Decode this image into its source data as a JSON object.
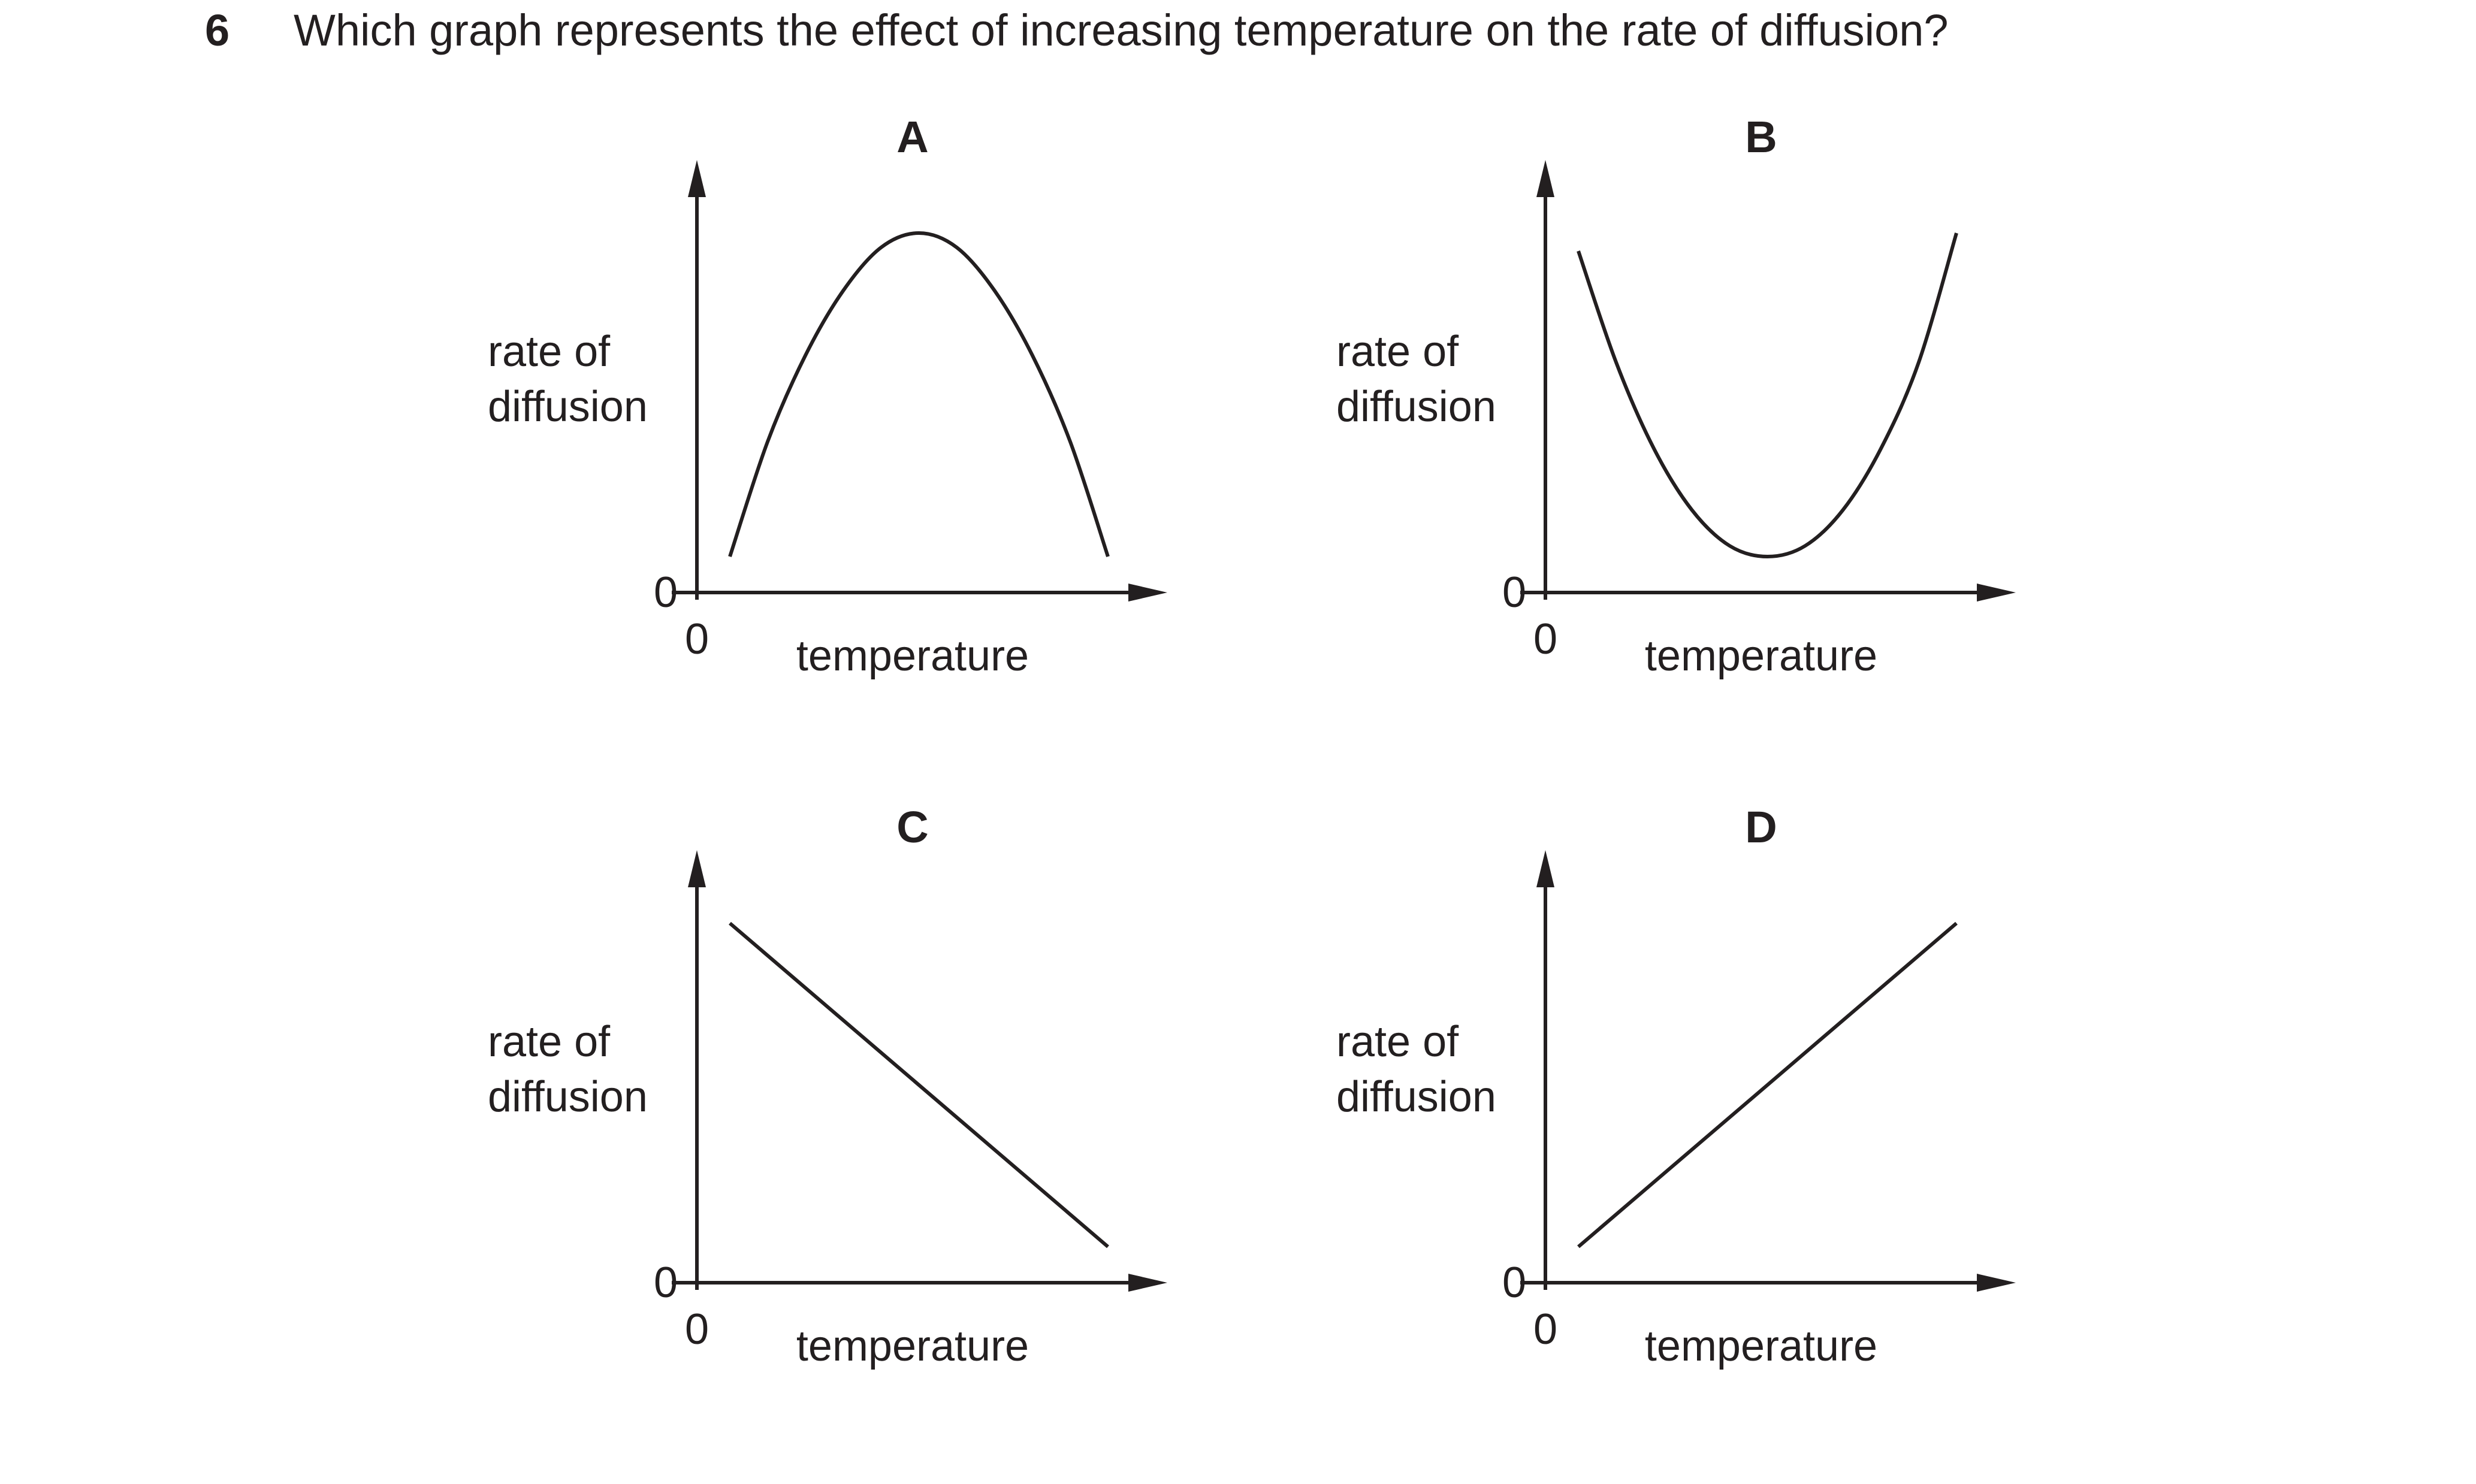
{
  "question": {
    "number": "6",
    "text": "Which graph represents the effect of increasing temperature on the rate of diffusion?"
  },
  "chart_data": [
    {
      "type": "line",
      "option": "A",
      "title": "A",
      "xlabel": "temperature",
      "ylabel": "rate of diffusion",
      "x_origin_label": "0",
      "y_origin_label": "0",
      "shape": "inverted parabola",
      "x": [
        0.0,
        0.1,
        0.2,
        0.3,
        0.4,
        0.5,
        0.6,
        0.7,
        0.8,
        0.9,
        1.0
      ],
      "y": [
        0.1,
        0.42,
        0.66,
        0.84,
        0.96,
        1.0,
        0.96,
        0.84,
        0.66,
        0.42,
        0.1
      ]
    },
    {
      "type": "line",
      "option": "B",
      "title": "B",
      "xlabel": "temperature",
      "ylabel": "rate of diffusion",
      "x_origin_label": "0",
      "y_origin_label": "0",
      "shape": "parabola",
      "x": [
        0.0,
        0.1,
        0.2,
        0.3,
        0.4,
        0.5,
        0.6,
        0.7,
        0.8,
        0.9,
        1.0
      ],
      "y": [
        0.95,
        0.64,
        0.4,
        0.23,
        0.13,
        0.1,
        0.13,
        0.23,
        0.4,
        0.64,
        1.0
      ]
    },
    {
      "type": "line",
      "option": "C",
      "title": "C",
      "xlabel": "temperature",
      "ylabel": "rate of diffusion",
      "x_origin_label": "0",
      "y_origin_label": "0",
      "shape": "straight line, negative gradient",
      "x": [
        0.0,
        1.0
      ],
      "y": [
        1.0,
        0.1
      ]
    },
    {
      "type": "line",
      "option": "D",
      "title": "D",
      "xlabel": "temperature",
      "ylabel": "rate of diffusion",
      "x_origin_label": "0",
      "y_origin_label": "0",
      "shape": "straight line, positive gradient",
      "x": [
        0.0,
        1.0
      ],
      "y": [
        0.1,
        1.0
      ]
    }
  ]
}
